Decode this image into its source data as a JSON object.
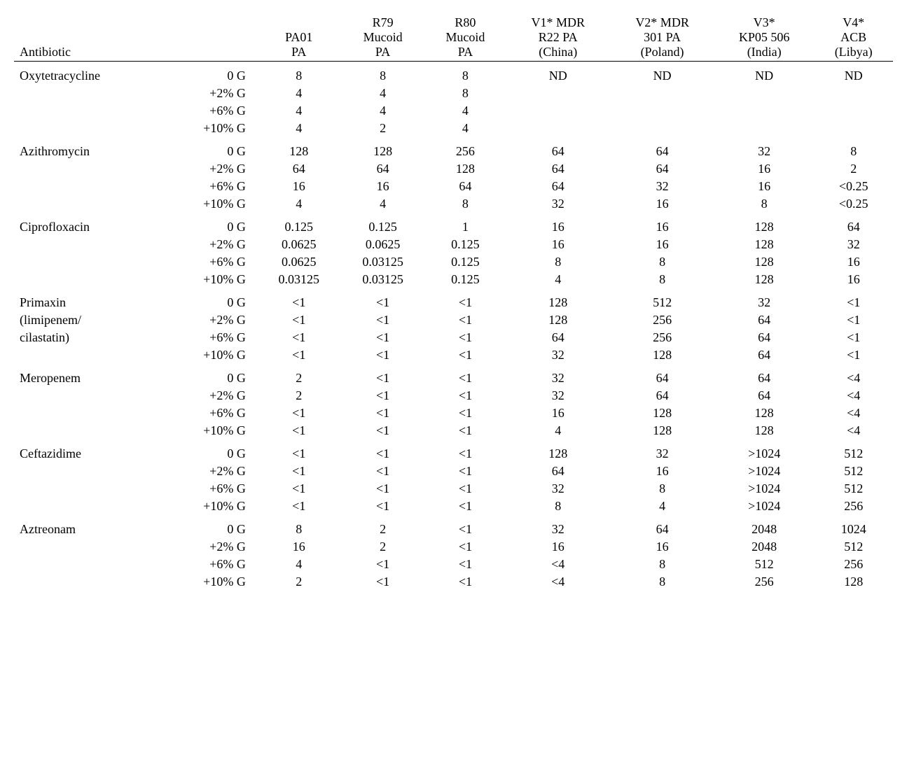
{
  "headers": {
    "antibiotic": "Antibiotic",
    "col1": {
      "l1": "PA01",
      "l2": "PA"
    },
    "col2": {
      "l0": "R79",
      "l1": "Mucoid",
      "l2": "PA"
    },
    "col3": {
      "l0": "R80",
      "l1": "Mucoid",
      "l2": "PA"
    },
    "col4": {
      "l0": "V1* MDR",
      "l1": "R22 PA",
      "l2": "(China)"
    },
    "col5": {
      "l0": "V2* MDR",
      "l1": "301 PA",
      "l2": "(Poland)"
    },
    "col6": {
      "l0": "V3*",
      "l1": "KP05 506",
      "l2": "(India)"
    },
    "col7": {
      "l0": "V4*",
      "l1": "ACB",
      "l2": "(Libya)"
    }
  },
  "conditions": [
    "0 G",
    "+2% G",
    "+6% G",
    "+10% G"
  ],
  "groups": [
    {
      "name": "Oxytetracycline",
      "rows": [
        [
          "8",
          "8",
          "8",
          "ND",
          "ND",
          "ND",
          "ND"
        ],
        [
          "4",
          "4",
          "8",
          "",
          "",
          "",
          ""
        ],
        [
          "4",
          "4",
          "4",
          "",
          "",
          "",
          ""
        ],
        [
          "4",
          "2",
          "4",
          "",
          "",
          "",
          ""
        ]
      ]
    },
    {
      "name": "Azithromycin",
      "rows": [
        [
          "128",
          "128",
          "256",
          "64",
          "64",
          "32",
          "8"
        ],
        [
          "64",
          "64",
          "128",
          "64",
          "64",
          "16",
          "2"
        ],
        [
          "16",
          "16",
          "64",
          "64",
          "32",
          "16",
          "<0.25"
        ],
        [
          "4",
          "4",
          "8",
          "32",
          "16",
          "8",
          "<0.25"
        ]
      ]
    },
    {
      "name": "Ciprofloxacin",
      "rows": [
        [
          "0.125",
          "0.125",
          "1",
          "16",
          "16",
          "128",
          "64"
        ],
        [
          "0.0625",
          "0.0625",
          "0.125",
          "16",
          "16",
          "128",
          "32"
        ],
        [
          "0.0625",
          "0.03125",
          "0.125",
          "8",
          "8",
          "128",
          "16"
        ],
        [
          "0.03125",
          "0.03125",
          "0.125",
          "4",
          "8",
          "128",
          "16"
        ]
      ]
    },
    {
      "name": "Primaxin\n(limipenem/\ncilastatin)",
      "rows": [
        [
          "<1",
          "<1",
          "<1",
          "128",
          "512",
          "32",
          "<1"
        ],
        [
          "<1",
          "<1",
          "<1",
          "128",
          "256",
          "64",
          "<1"
        ],
        [
          "<1",
          "<1",
          "<1",
          "64",
          "256",
          "64",
          "<1"
        ],
        [
          "<1",
          "<1",
          "<1",
          "32",
          "128",
          "64",
          "<1"
        ]
      ]
    },
    {
      "name": "Meropenem",
      "rows": [
        [
          "2",
          "<1",
          "<1",
          "32",
          "64",
          "64",
          "<4"
        ],
        [
          "2",
          "<1",
          "<1",
          "32",
          "64",
          "64",
          "<4"
        ],
        [
          "<1",
          "<1",
          "<1",
          "16",
          "128",
          "128",
          "<4"
        ],
        [
          "<1",
          "<1",
          "<1",
          "4",
          "128",
          "128",
          "<4"
        ]
      ]
    },
    {
      "name": "Ceftazidime",
      "rows": [
        [
          "<1",
          "<1",
          "<1",
          "128",
          "32",
          ">1024",
          "512"
        ],
        [
          "<1",
          "<1",
          "<1",
          "64",
          "16",
          ">1024",
          "512"
        ],
        [
          "<1",
          "<1",
          "<1",
          "32",
          "8",
          ">1024",
          "512"
        ],
        [
          "<1",
          "<1",
          "<1",
          "8",
          "4",
          ">1024",
          "256"
        ]
      ]
    },
    {
      "name": "Aztreonam",
      "rows": [
        [
          "8",
          "2",
          "<1",
          "32",
          "64",
          "2048",
          "1024"
        ],
        [
          "16",
          "2",
          "<1",
          "16",
          "16",
          "2048",
          "512"
        ],
        [
          "4",
          "<1",
          "<1",
          "<4",
          "8",
          "512",
          "256"
        ],
        [
          "2",
          "<1",
          "<1",
          "<4",
          "8",
          "256",
          "128"
        ]
      ]
    }
  ]
}
